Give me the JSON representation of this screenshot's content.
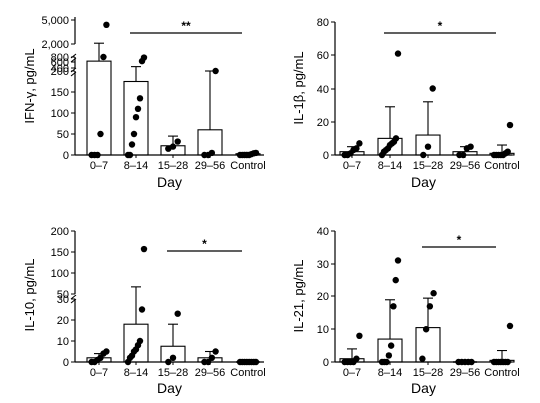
{
  "chart_data": [
    {
      "type": "scatter",
      "panel": "ifn",
      "ylabel": "IFN-γ, pg/mL",
      "xlabel": "Day",
      "categories": [
        "0–7",
        "8–14",
        "15–28",
        "29–56",
        "Control"
      ],
      "y_scale": "broken",
      "y_segments": [
        [
          0,
          200
        ],
        [
          400,
          800
        ],
        [
          2000,
          5000
        ]
      ],
      "yticks": [
        "0",
        "50",
        "100",
        "150",
        "200",
        "400",
        "600",
        "800",
        "2,000",
        "5,000"
      ],
      "bar_means": [
        650,
        175,
        22,
        60,
        3
      ],
      "error_upper": [
        2100,
        450,
        45,
        200,
        6
      ],
      "points": [
        [
          0,
          0,
          0,
          50,
          800,
          4400
        ],
        [
          0,
          0,
          25,
          50,
          90,
          110,
          135,
          650,
          780
        ],
        [
          15,
          20,
          32
        ],
        [
          0,
          0,
          5,
          290
        ],
        [
          0,
          0,
          0,
          0,
          0,
          2,
          4,
          5
        ]
      ],
      "significance": {
        "label": "**",
        "from": "8–14",
        "to": "Control"
      }
    },
    {
      "type": "scatter",
      "panel": "il1b",
      "ylabel": "IL-1β, pg/mL",
      "xlabel": "Day",
      "categories": [
        "0–7",
        "8–14",
        "15–28",
        "29–56",
        "Control"
      ],
      "ylim": [
        0,
        80
      ],
      "yticks": [
        "0",
        "20",
        "40",
        "60",
        "80"
      ],
      "bar_means": [
        2,
        10,
        12,
        2,
        1
      ],
      "error_upper": [
        5,
        29,
        32,
        5,
        6
      ],
      "points": [
        [
          0,
          0,
          1,
          3,
          4,
          7
        ],
        [
          0,
          2,
          3,
          4,
          6,
          7,
          8,
          10,
          61
        ],
        [
          0,
          5,
          40
        ],
        [
          0,
          0,
          4,
          5
        ],
        [
          0,
          0,
          0,
          0,
          0,
          1,
          2,
          18
        ]
      ],
      "significance": {
        "label": "*",
        "from": "8–14",
        "to": "Control"
      }
    },
    {
      "type": "scatter",
      "panel": "il10",
      "ylabel": "IL-10, pg/mL",
      "xlabel": "Day",
      "categories": [
        "0–7",
        "8–14",
        "15–28",
        "29–56",
        "Control"
      ],
      "y_scale": "broken",
      "y_segments": [
        [
          0,
          30
        ],
        [
          50,
          200
        ]
      ],
      "yticks": [
        "0",
        "10",
        "20",
        "30",
        "50",
        "100",
        "150",
        "200"
      ],
      "bar_means": [
        2,
        18,
        7.5,
        2,
        0
      ],
      "error_upper": [
        4,
        67,
        18,
        5,
        0
      ],
      "points": [
        [
          0,
          0,
          1,
          2,
          4,
          5
        ],
        [
          0,
          2,
          3,
          5,
          6,
          8,
          10,
          25,
          157
        ],
        [
          0,
          2,
          23
        ],
        [
          0,
          0,
          2,
          5
        ],
        [
          0,
          0,
          0,
          0,
          0,
          0,
          0,
          0
        ]
      ],
      "significance": {
        "label": "*",
        "from": "15–28",
        "to": "Control"
      }
    },
    {
      "type": "scatter",
      "panel": "il21",
      "ylabel": "IL-21, pg/mL",
      "xlabel": "Day",
      "categories": [
        "0–7",
        "8–14",
        "15–28",
        "29–56",
        "Control"
      ],
      "ylim": [
        0,
        40
      ],
      "yticks": [
        "0",
        "10",
        "20",
        "30",
        "40"
      ],
      "bar_means": [
        1,
        7,
        10.5,
        0,
        0.5
      ],
      "error_upper": [
        4,
        19,
        19.5,
        0,
        3.5
      ],
      "points": [
        [
          0,
          0,
          0,
          0,
          1,
          8
        ],
        [
          0,
          0,
          0,
          2,
          5,
          17,
          25,
          31
        ],
        [
          1,
          10,
          17,
          21
        ],
        [
          0,
          0,
          0,
          0,
          0
        ],
        [
          0,
          0,
          0,
          0,
          0,
          0,
          0,
          11
        ]
      ],
      "significance": {
        "label": "*",
        "from": "15–28",
        "to": "Control"
      }
    }
  ]
}
